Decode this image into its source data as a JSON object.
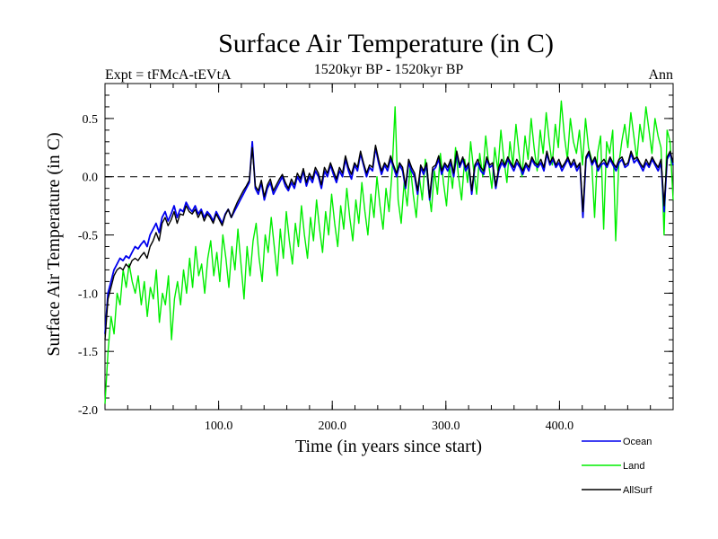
{
  "chart_data": {
    "type": "line",
    "title": "Surface Air Temperature (in C)",
    "experiment_label": "Expt = tFMcA-tEVtA",
    "period_label": "1520kyr BP - 1520kyr BP",
    "season_label": "Ann",
    "xlabel": "Time (in years since start)",
    "ylabel": "Surface Air Temperature (in C)",
    "xlim": [
      0,
      500
    ],
    "ylim": [
      -2.0,
      0.8
    ],
    "x_ticks": [
      100,
      200,
      300,
      400
    ],
    "x_tick_labels": [
      "100.0",
      "200.0",
      "300.0",
      "400.0"
    ],
    "y_ticks": [
      -2.0,
      -1.5,
      -1.0,
      -0.5,
      0.0,
      0.5
    ],
    "y_tick_labels": [
      "-2.0",
      "-1.5",
      "-1.0",
      "-0.5",
      "0.0",
      "0.5"
    ],
    "reference_line": 0.0,
    "legend_position": "bottom-right",
    "series": [
      {
        "name": "Land",
        "color": "#00ee00",
        "values": [
          -1.95,
          -1.5,
          -1.2,
          -1.35,
          -1.0,
          -1.1,
          -0.8,
          -0.95,
          -0.75,
          -0.9,
          -1.0,
          -0.85,
          -1.1,
          -0.9,
          -1.2,
          -0.95,
          -1.05,
          -0.8,
          -1.25,
          -1.0,
          -1.1,
          -0.85,
          -1.4,
          -1.05,
          -0.9,
          -1.1,
          -0.8,
          -1.0,
          -0.7,
          -0.95,
          -0.6,
          -0.85,
          -0.75,
          -1.0,
          -0.7,
          -0.55,
          -0.85,
          -0.65,
          -0.9,
          -0.5,
          -0.7,
          -0.95,
          -0.6,
          -0.8,
          -0.45,
          -0.75,
          -1.05,
          -0.6,
          -0.85,
          -0.55,
          -0.4,
          -0.7,
          -0.9,
          -0.5,
          -0.65,
          -0.35,
          -0.6,
          -0.85,
          -0.45,
          -0.7,
          -0.3,
          -0.55,
          -0.75,
          -0.4,
          -0.6,
          -0.25,
          -0.5,
          -0.7,
          -0.35,
          -0.55,
          -0.2,
          -0.45,
          -0.65,
          -0.3,
          -0.5,
          -0.15,
          -0.4,
          -0.6,
          -0.25,
          -0.45,
          -0.1,
          -0.35,
          -0.55,
          -0.2,
          -0.4,
          -0.05,
          -0.3,
          -0.5,
          -0.15,
          -0.35,
          0.0,
          -0.25,
          -0.45,
          -0.1,
          -0.3,
          0.05,
          0.6,
          -0.2,
          -0.4,
          -0.05,
          -0.25,
          0.1,
          -0.15,
          -0.35,
          0.0,
          -0.2,
          0.15,
          -0.1,
          -0.3,
          0.05,
          -0.15,
          0.2,
          -0.05,
          -0.25,
          0.1,
          -0.1,
          0.25,
          0.0,
          -0.2,
          0.15,
          -0.05,
          0.3,
          0.05,
          -0.15,
          0.2,
          0.0,
          0.35,
          0.1,
          -0.1,
          0.25,
          0.05,
          0.4,
          0.15,
          -0.05,
          0.3,
          0.1,
          0.45,
          0.2,
          0.0,
          0.35,
          0.15,
          0.5,
          0.25,
          0.05,
          0.4,
          0.2,
          0.55,
          0.3,
          0.1,
          0.45,
          0.25,
          0.65,
          0.35,
          0.15,
          0.5,
          0.3,
          0.2,
          0.4,
          0.1,
          0.5,
          0.25,
          0.15,
          -0.35,
          0.2,
          0.35,
          -0.45,
          0.3,
          0.2,
          0.4,
          -0.55,
          0.1,
          0.3,
          0.45,
          0.25,
          0.55,
          0.35,
          0.15,
          0.45,
          0.3,
          0.6,
          0.4,
          0.2,
          0.5,
          0.35,
          0.25,
          -0.5,
          0.4,
          0.3,
          -0.2
        ]
      },
      {
        "name": "Ocean",
        "color": "#0000ee",
        "values": [
          -1.35,
          -1.0,
          -0.9,
          -0.8,
          -0.75,
          -0.7,
          -0.72,
          -0.68,
          -0.7,
          -0.65,
          -0.6,
          -0.62,
          -0.58,
          -0.55,
          -0.6,
          -0.5,
          -0.45,
          -0.4,
          -0.48,
          -0.35,
          -0.3,
          -0.38,
          -0.32,
          -0.25,
          -0.35,
          -0.28,
          -0.3,
          -0.22,
          -0.27,
          -0.3,
          -0.25,
          -0.32,
          -0.28,
          -0.35,
          -0.3,
          -0.33,
          -0.38,
          -0.3,
          -0.35,
          -0.4,
          -0.32,
          -0.28,
          -0.35,
          -0.3,
          -0.25,
          -0.2,
          -0.15,
          -0.1,
          -0.05,
          0.3,
          -0.1,
          -0.15,
          -0.05,
          -0.2,
          -0.1,
          -0.05,
          -0.15,
          -0.1,
          -0.05,
          0.0,
          -0.08,
          -0.12,
          -0.05,
          -0.1,
          0.0,
          -0.05,
          0.05,
          -0.08,
          0.0,
          -0.05,
          0.05,
          0.0,
          -0.1,
          0.05,
          0.0,
          0.1,
          0.02,
          -0.05,
          0.05,
          0.0,
          0.15,
          0.05,
          -0.02,
          0.1,
          0.05,
          0.2,
          0.1,
          0.0,
          0.08,
          0.05,
          0.25,
          0.12,
          0.02,
          0.1,
          0.05,
          0.15,
          0.08,
          0.0,
          0.1,
          0.05,
          -0.1,
          0.12,
          0.05,
          0.0,
          -0.15,
          0.08,
          0.02,
          0.1,
          -0.2,
          0.05,
          0.08,
          0.15,
          0.02,
          0.1,
          0.05,
          0.12,
          0.0,
          0.2,
          0.08,
          0.15,
          0.05,
          0.1,
          -0.15,
          0.08,
          0.12,
          0.05,
          0.02,
          0.15,
          0.08,
          0.1,
          -0.1,
          0.05,
          0.12,
          0.08,
          0.15,
          0.1,
          0.05,
          0.12,
          0.08,
          0.02,
          0.1,
          0.05,
          0.15,
          0.1,
          0.08,
          0.12,
          0.05,
          0.2,
          0.1,
          0.15,
          0.08,
          0.12,
          0.05,
          0.1,
          0.15,
          0.08,
          0.12,
          0.05,
          0.1,
          -0.35,
          0.15,
          0.2,
          0.1,
          0.15,
          0.05,
          0.1,
          0.12,
          0.08,
          0.15,
          0.1,
          0.05,
          0.12,
          0.15,
          0.08,
          0.1,
          0.2,
          0.12,
          0.15,
          0.1,
          0.05,
          0.12,
          0.08,
          0.15,
          0.1,
          0.05,
          0.12,
          -0.3,
          0.15,
          0.2,
          0.1
        ]
      },
      {
        "name": "AllSurf",
        "color": "#000000",
        "values": [
          -1.4,
          -1.05,
          -0.95,
          -0.85,
          -0.8,
          -0.78,
          -0.8,
          -0.75,
          -0.78,
          -0.72,
          -0.7,
          -0.72,
          -0.68,
          -0.65,
          -0.7,
          -0.6,
          -0.55,
          -0.48,
          -0.55,
          -0.4,
          -0.35,
          -0.42,
          -0.37,
          -0.3,
          -0.4,
          -0.32,
          -0.33,
          -0.25,
          -0.3,
          -0.32,
          -0.28,
          -0.35,
          -0.3,
          -0.38,
          -0.32,
          -0.35,
          -0.4,
          -0.32,
          -0.37,
          -0.42,
          -0.33,
          -0.28,
          -0.35,
          -0.28,
          -0.22,
          -0.17,
          -0.12,
          -0.08,
          -0.03,
          0.25,
          -0.08,
          -0.12,
          -0.03,
          -0.17,
          -0.07,
          -0.02,
          -0.12,
          -0.07,
          -0.02,
          0.02,
          -0.05,
          -0.1,
          -0.02,
          -0.07,
          0.03,
          -0.02,
          0.07,
          -0.05,
          0.03,
          -0.02,
          0.08,
          0.03,
          -0.07,
          0.08,
          0.03,
          0.12,
          0.05,
          -0.02,
          0.08,
          0.03,
          0.18,
          0.08,
          0.02,
          0.12,
          0.08,
          0.22,
          0.12,
          0.03,
          0.1,
          0.08,
          0.27,
          0.15,
          0.05,
          0.12,
          0.08,
          0.18,
          0.1,
          0.03,
          0.12,
          0.08,
          -0.08,
          0.15,
          0.08,
          0.03,
          -0.12,
          0.1,
          0.05,
          0.12,
          -0.18,
          0.08,
          0.1,
          0.18,
          0.05,
          0.12,
          0.08,
          0.15,
          0.03,
          0.22,
          0.1,
          0.17,
          0.08,
          0.12,
          -0.12,
          0.1,
          0.15,
          0.08,
          0.05,
          0.17,
          0.1,
          0.12,
          -0.08,
          0.08,
          0.15,
          0.1,
          0.17,
          0.12,
          0.08,
          0.15,
          0.1,
          0.05,
          0.12,
          0.08,
          0.17,
          0.12,
          0.1,
          0.15,
          0.08,
          0.22,
          0.12,
          0.17,
          0.1,
          0.15,
          0.08,
          0.12,
          0.17,
          0.1,
          0.15,
          0.08,
          0.12,
          -0.3,
          0.17,
          0.22,
          0.12,
          0.17,
          0.08,
          0.12,
          0.15,
          0.1,
          0.17,
          0.12,
          0.08,
          0.15,
          0.17,
          0.1,
          0.12,
          0.22,
          0.15,
          0.17,
          0.12,
          0.08,
          0.15,
          0.1,
          0.17,
          0.12,
          0.08,
          0.15,
          -0.25,
          0.17,
          0.22,
          0.12
        ]
      }
    ]
  }
}
